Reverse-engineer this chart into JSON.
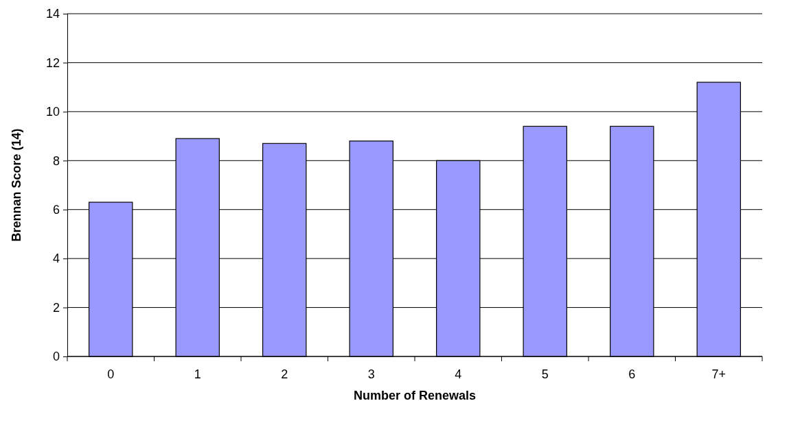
{
  "chart_data": {
    "type": "bar",
    "xlabel": "Number of Renewals",
    "ylabel": "Brennan Score (14)",
    "categories": [
      "0",
      "1",
      "2",
      "3",
      "4",
      "5",
      "6",
      "7+"
    ],
    "values": [
      6.3,
      8.9,
      8.7,
      8.8,
      8.0,
      9.4,
      9.4,
      11.2
    ],
    "color": "#9999ff",
    "ylim": [
      0,
      14
    ],
    "yticks": [
      0,
      2,
      4,
      6,
      8,
      10,
      12,
      14
    ],
    "grid": "y"
  }
}
